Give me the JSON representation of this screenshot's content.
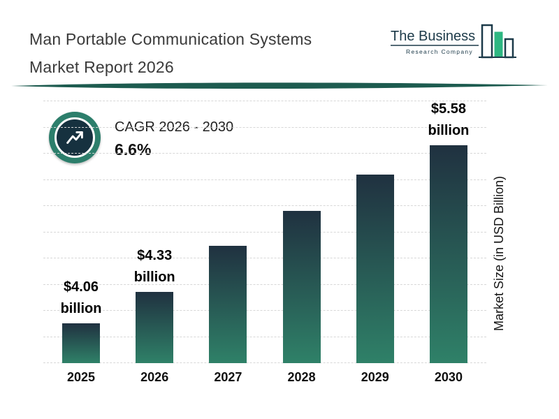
{
  "header": {
    "title_line1": "Man Portable Communication Systems",
    "title_line2": "Market Report 2026",
    "logo": {
      "name": "The Business",
      "subtitle": "Research Company"
    }
  },
  "cagr": {
    "label": "CAGR 2026 - 2030",
    "value": "6.6%"
  },
  "chart_data": {
    "type": "bar",
    "title": "Man Portable Communication Systems Market Report 2026",
    "categories": [
      "2025",
      "2026",
      "2027",
      "2028",
      "2029",
      "2030"
    ],
    "values": [
      4.06,
      4.33,
      4.72,
      5.02,
      5.33,
      5.58
    ],
    "bar_labels": [
      {
        "line1": "$4.06",
        "line2": "billion"
      },
      {
        "line1": "$4.33",
        "line2": "billion"
      },
      null,
      null,
      null,
      {
        "line1": "$5.58",
        "line2": "billion"
      }
    ],
    "xlabel": "",
    "ylabel": "Market Size (in USD Billion)",
    "ylim": [
      3.72,
      5.58
    ],
    "grid": "horizontal-dashed",
    "legend": "none"
  },
  "colors": {
    "bar_gradient_top": "#203140",
    "bar_gradient_bottom": "#2f8168",
    "divider": "#1d5b4f",
    "cagr_ring": "#2c7e6b",
    "cagr_inner": "#16313f",
    "gridline": "#d7d7d7",
    "title_text": "#3a3a3a",
    "logo_navy": "#1c3a49",
    "logo_green": "#2eb782"
  }
}
